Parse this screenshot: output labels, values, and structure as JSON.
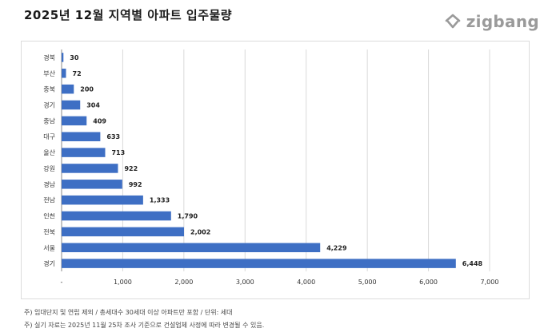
{
  "title": "2025년 12월 지역별 아파트 입주물량",
  "logo": {
    "text": "zigbang",
    "icon": "zigbang-house-icon"
  },
  "colors": {
    "bar": "#3e6fc4",
    "grid": "#d9d9d9",
    "axis": "#888888"
  },
  "chart_data": {
    "type": "bar",
    "orientation": "horizontal",
    "categories": [
      "경북",
      "부산",
      "충북",
      "경기",
      "충남",
      "대구",
      "울산",
      "강원",
      "경남",
      "전남",
      "인천",
      "전북",
      "서울",
      "경기"
    ],
    "values": [
      30,
      72,
      200,
      304,
      409,
      633,
      713,
      922,
      992,
      1333,
      1790,
      2002,
      4229,
      6448
    ],
    "data_labels": [
      "30",
      "72",
      "200",
      "304",
      "409",
      "633",
      "713",
      "922",
      "992",
      "1,333",
      "1,790",
      "2,002",
      "4,229",
      "6,448"
    ],
    "xlim": [
      0,
      7000
    ],
    "xticks": [
      0,
      1000,
      2000,
      3000,
      4000,
      5000,
      6000,
      7000
    ],
    "xtick_labels": [
      "-",
      "1,000",
      "2,000",
      "3,000",
      "4,000",
      "5,000",
      "6,000",
      "7,000"
    ],
    "grid": true,
    "xlabel": "",
    "ylabel": ""
  },
  "notes": [
    "주) 임대단지 및 연립 제외 / 총세대수 30세대 이상 아파트만 포함 / 단위: 세대",
    "주) 실기 자료는 2025년 11월 25차 조사 기준으로 건설업체 사정에 따라 변경될 수 있음."
  ]
}
